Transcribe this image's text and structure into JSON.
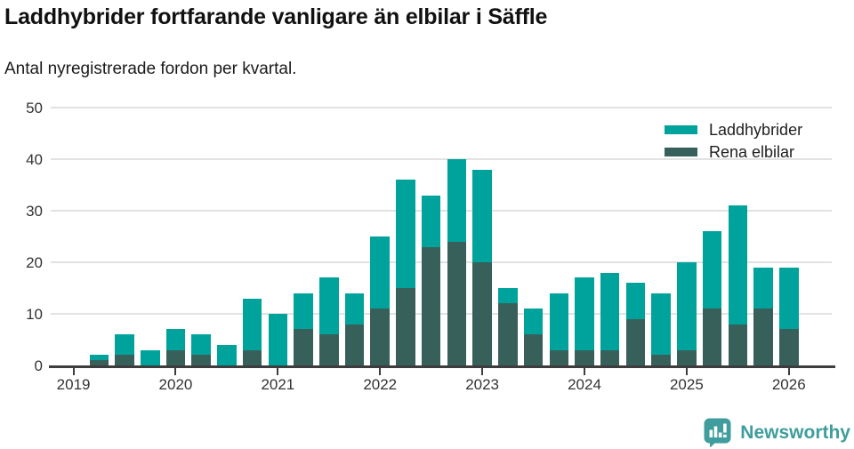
{
  "page": {
    "title": "Laddhybrider fortfarande vanligare än elbilar i Säffle",
    "subtitle": "Antal nyregistrerade fordon per kvartal."
  },
  "chart_data": {
    "type": "bar",
    "stacked": true,
    "title": "Laddhybrider fortfarande vanligare än elbilar i Säffle",
    "subtitle": "Antal nyregistrerade fordon per kvartal.",
    "categories": [
      "2019Q1",
      "2019Q2",
      "2019Q3",
      "2019Q4",
      "2020Q1",
      "2020Q2",
      "2020Q3",
      "2020Q4",
      "2021Q1",
      "2021Q2",
      "2021Q3",
      "2021Q4",
      "2022Q1",
      "2022Q2",
      "2022Q3",
      "2022Q4",
      "2023Q1",
      "2023Q2",
      "2023Q3",
      "2023Q4",
      "2024Q1",
      "2024Q2",
      "2024Q3",
      "2024Q4",
      "2025Q1",
      "2025Q2",
      "2025Q3",
      "2025Q4",
      "2026Q1"
    ],
    "series": [
      {
        "name": "Laddhybrider",
        "color": "#00a39b",
        "values": [
          0,
          1,
          4,
          3,
          4,
          4,
          4,
          10,
          10,
          7,
          11,
          6,
          14,
          21,
          10,
          16,
          18,
          3,
          5,
          11,
          14,
          15,
          7,
          12,
          17,
          15,
          23,
          8,
          12
        ]
      },
      {
        "name": "Rena elbilar",
        "color": "#38605b",
        "values": [
          0,
          1,
          2,
          0,
          3,
          2,
          0,
          3,
          0,
          7,
          6,
          8,
          11,
          15,
          23,
          24,
          20,
          12,
          6,
          3,
          3,
          3,
          9,
          2,
          3,
          11,
          8,
          11,
          7
        ]
      }
    ],
    "totals": [
      0,
      2,
      6,
      3,
      7,
      6,
      4,
      13,
      10,
      14,
      17,
      14,
      25,
      36,
      33,
      40,
      38,
      15,
      11,
      14,
      17,
      18,
      16,
      14,
      20,
      26,
      31,
      19,
      19
    ],
    "ylim": [
      0,
      50
    ],
    "yticks": [
      0,
      10,
      20,
      30,
      40,
      50
    ],
    "year_labels": [
      "2019",
      "2020",
      "2021",
      "2022",
      "2023",
      "2024",
      "2025",
      "2026"
    ],
    "grid": true,
    "legend_position": "top-right"
  },
  "footer": {
    "brand": "Newsworthy"
  }
}
